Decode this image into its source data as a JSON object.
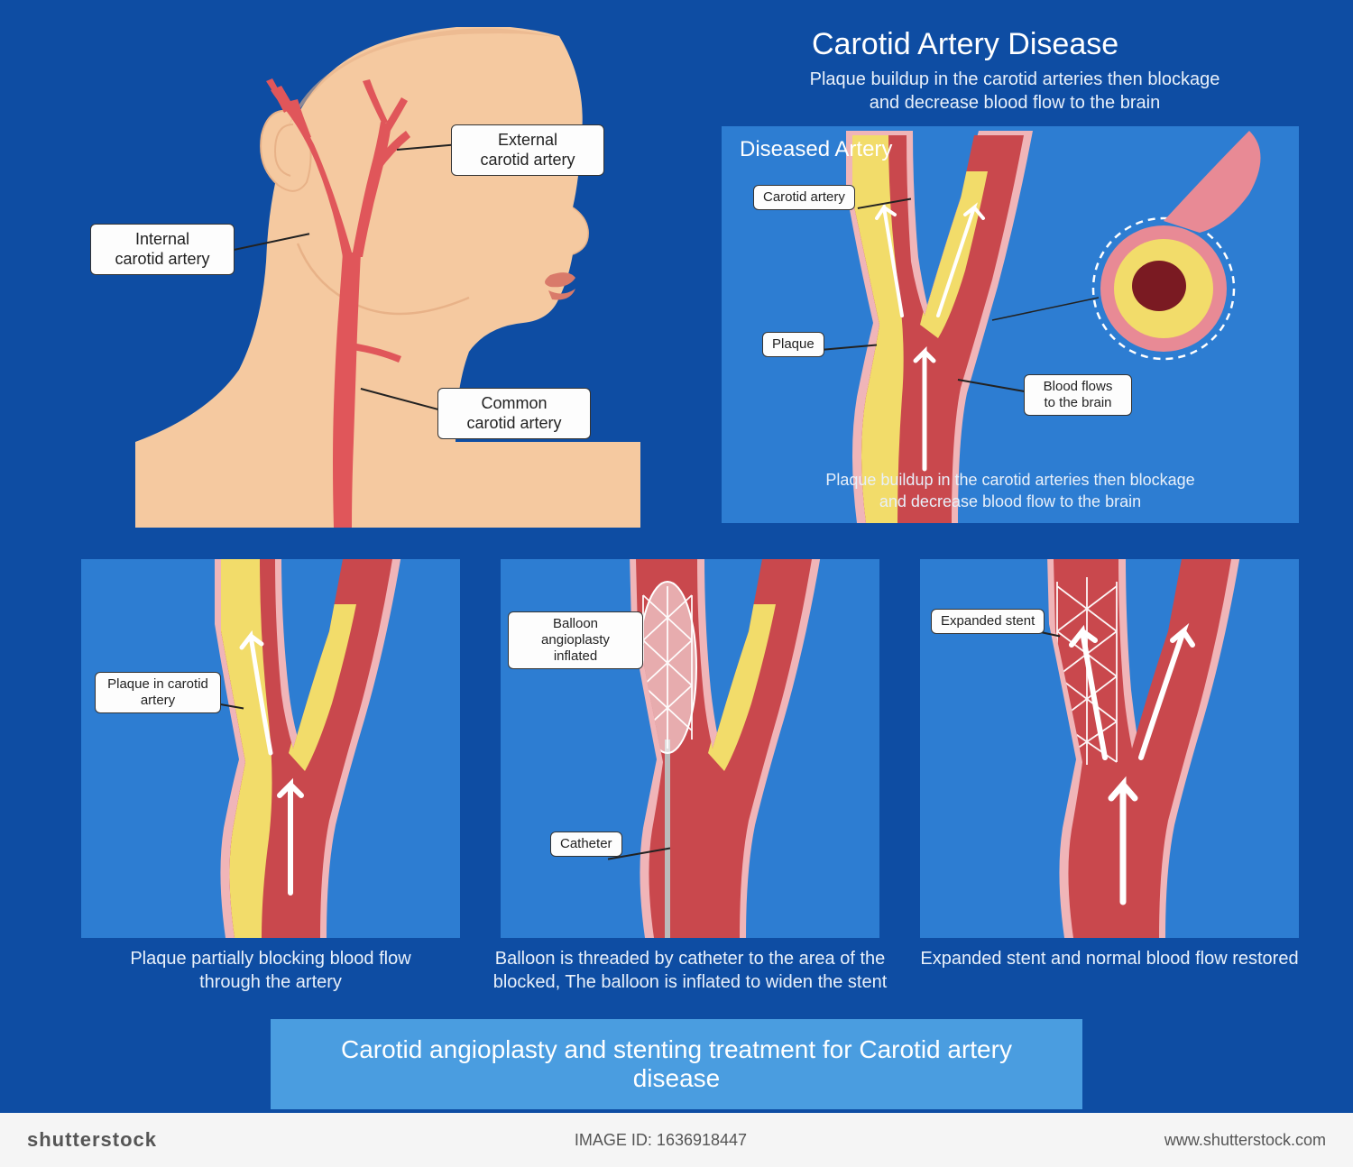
{
  "colors": {
    "bg": "#0e4da3",
    "panel": "#2d7dd2",
    "panel_light": "#4a9de0",
    "skin": "#f5c9a0",
    "skin_shadow": "#e8b288",
    "lip": "#d97a6a",
    "artery": "#e0565a",
    "artery_dark": "#c04448",
    "artery_wall": "#f0b5b8",
    "artery_inner": "#c9484d",
    "plaque": "#f2dc6a",
    "plaque_dark": "#d9c24a",
    "flow_arrow": "#ffffff",
    "label_bg": "#fdfdfd",
    "label_border": "#333333",
    "text": "#ffffff",
    "stent": "#ffffff",
    "catheter": "#888888",
    "cross_outer": "#e88a95",
    "cross_mid": "#f2dc6a",
    "cross_inner": "#7a1a22",
    "cross_dash": "#ffffff"
  },
  "head_panel": {
    "labels": {
      "external": "External\ncarotid artery",
      "internal": "Internal\ncarotid artery",
      "common": "Common\ncarotid artery"
    }
  },
  "disease_panel": {
    "title": "Carotid Artery Disease",
    "subtitle": "Plaque buildup in the carotid arteries then blockage\nand decrease blood flow to the brain",
    "panel_label": "Diseased Artery",
    "labels": {
      "artery": "Carotid artery",
      "plaque": "Plaque",
      "flow": "Blood flows\nto the brain"
    },
    "caption": "Plaque buildup in the carotid arteries then blockage\nand decrease blood flow to the brain"
  },
  "steps": [
    {
      "labels": {
        "plaque": "Plaque in carotid\nartery"
      },
      "caption": "Plaque partially blocking blood flow\nthrough the artery"
    },
    {
      "labels": {
        "balloon": "Balloon angioplasty\ninflated",
        "catheter": "Catheter"
      },
      "caption": "Balloon is threaded by catheter to the area of the\nblocked, The balloon is inflated to widen the stent"
    },
    {
      "labels": {
        "stent": "Expanded stent"
      },
      "caption": "Expanded stent and normal blood flow restored"
    }
  ],
  "footer": "Carotid angioplasty and stenting treatment for Carotid artery disease",
  "watermark": {
    "brand": "shutterstock",
    "id": "IMAGE ID: 1636918447",
    "url": "www.shutterstock.com"
  }
}
